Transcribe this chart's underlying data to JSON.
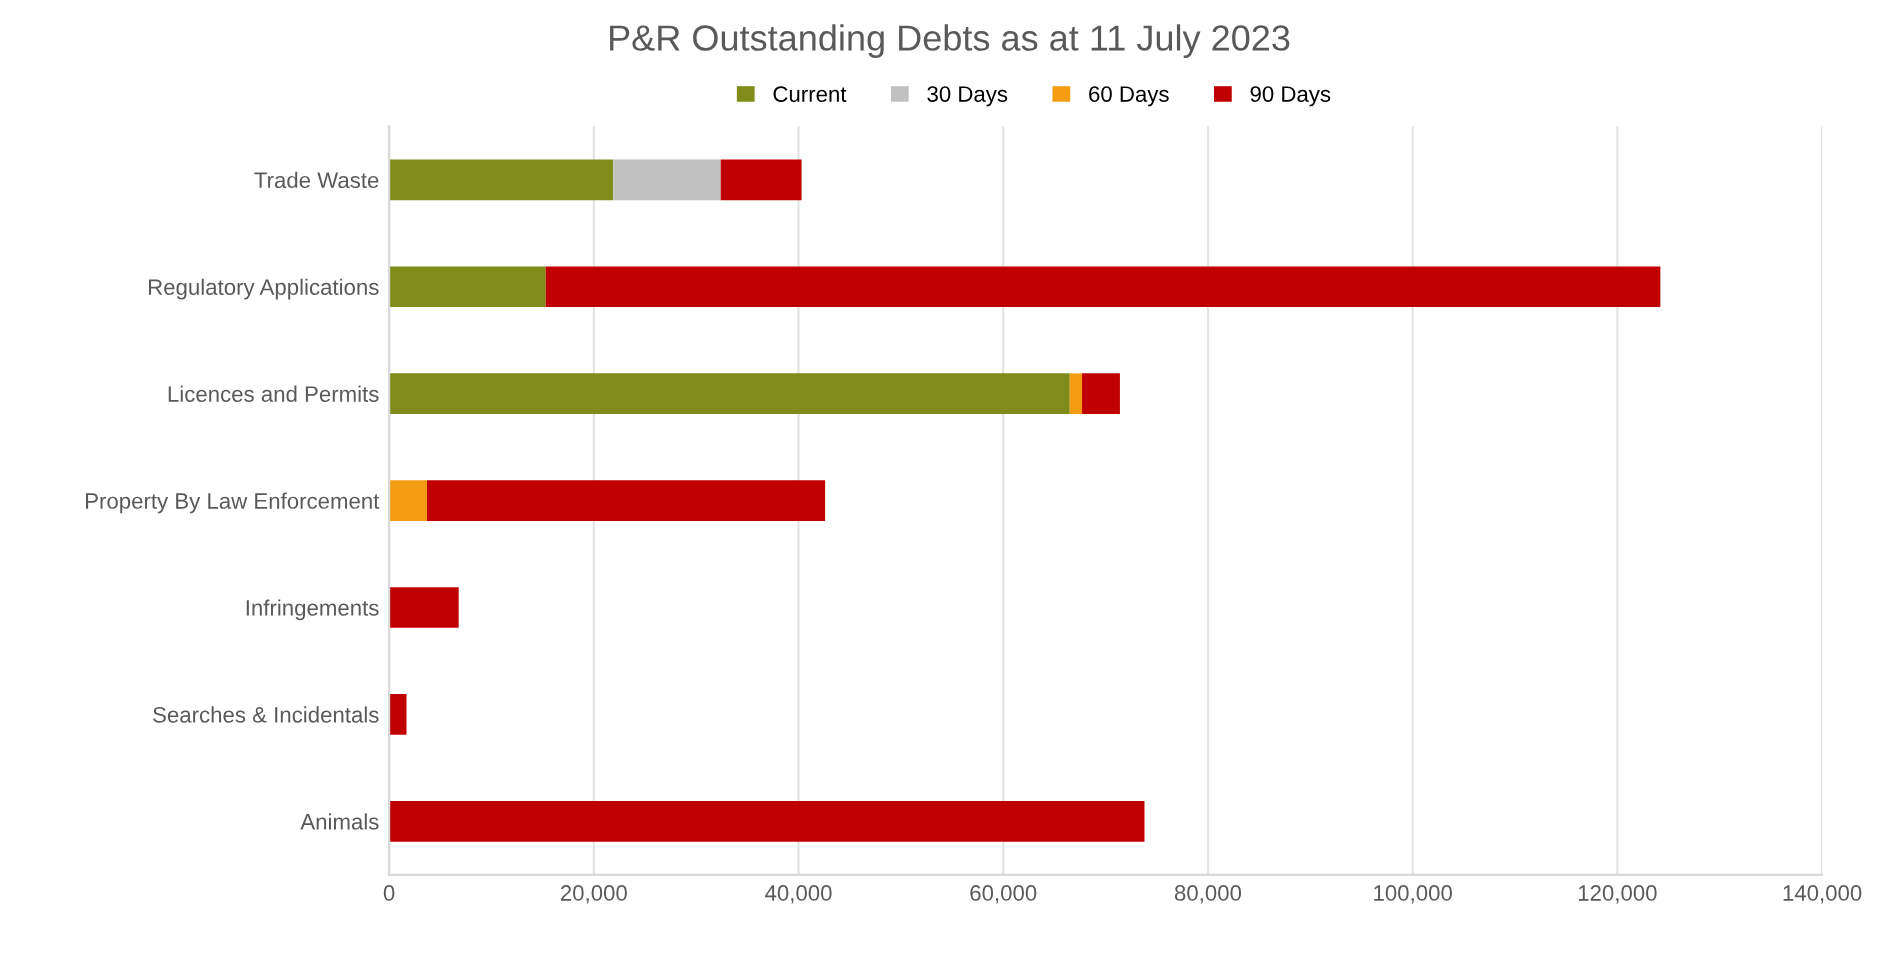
{
  "chart_data": {
    "type": "bar",
    "orientation": "horizontal",
    "stacked": true,
    "title": "P&R Outstanding Debts as at 11 July 2023",
    "categories": [
      "Trade Waste",
      "Regulatory Applications",
      "Licences and Permits",
      "Property By Law Enforcement",
      "Infringements",
      "Searches & Incidentals",
      "Animals"
    ],
    "series": [
      {
        "name": "Current",
        "color": "#7f8c1a",
        "values": [
          21900,
          15300,
          66500,
          0,
          0,
          0,
          0
        ]
      },
      {
        "name": "30 Days",
        "color": "#c0c0c0",
        "values": [
          10500,
          0,
          0,
          0,
          0,
          0,
          0
        ]
      },
      {
        "name": "60 Days",
        "color": "#f59d12",
        "values": [
          0,
          0,
          1200,
          3700,
          0,
          0,
          0
        ]
      },
      {
        "name": "90 Days",
        "color": "#c00000",
        "values": [
          7900,
          108900,
          3700,
          38900,
          6800,
          1700,
          73800
        ]
      }
    ],
    "xlim": [
      0,
      140000
    ],
    "xticks": [
      0,
      {
        "value": 20000,
        "label": "20,000"
      },
      {
        "value": 40000,
        "label": "40,000"
      },
      {
        "value": 60000,
        "label": "60,000"
      },
      {
        "value": 80000,
        "label": "80,000"
      },
      {
        "value": 100000,
        "label": "100,000"
      },
      {
        "value": 120000,
        "label": "120,000"
      },
      {
        "value": 140000,
        "label": "140,000"
      }
    ],
    "grid": "x",
    "legend": "top"
  }
}
